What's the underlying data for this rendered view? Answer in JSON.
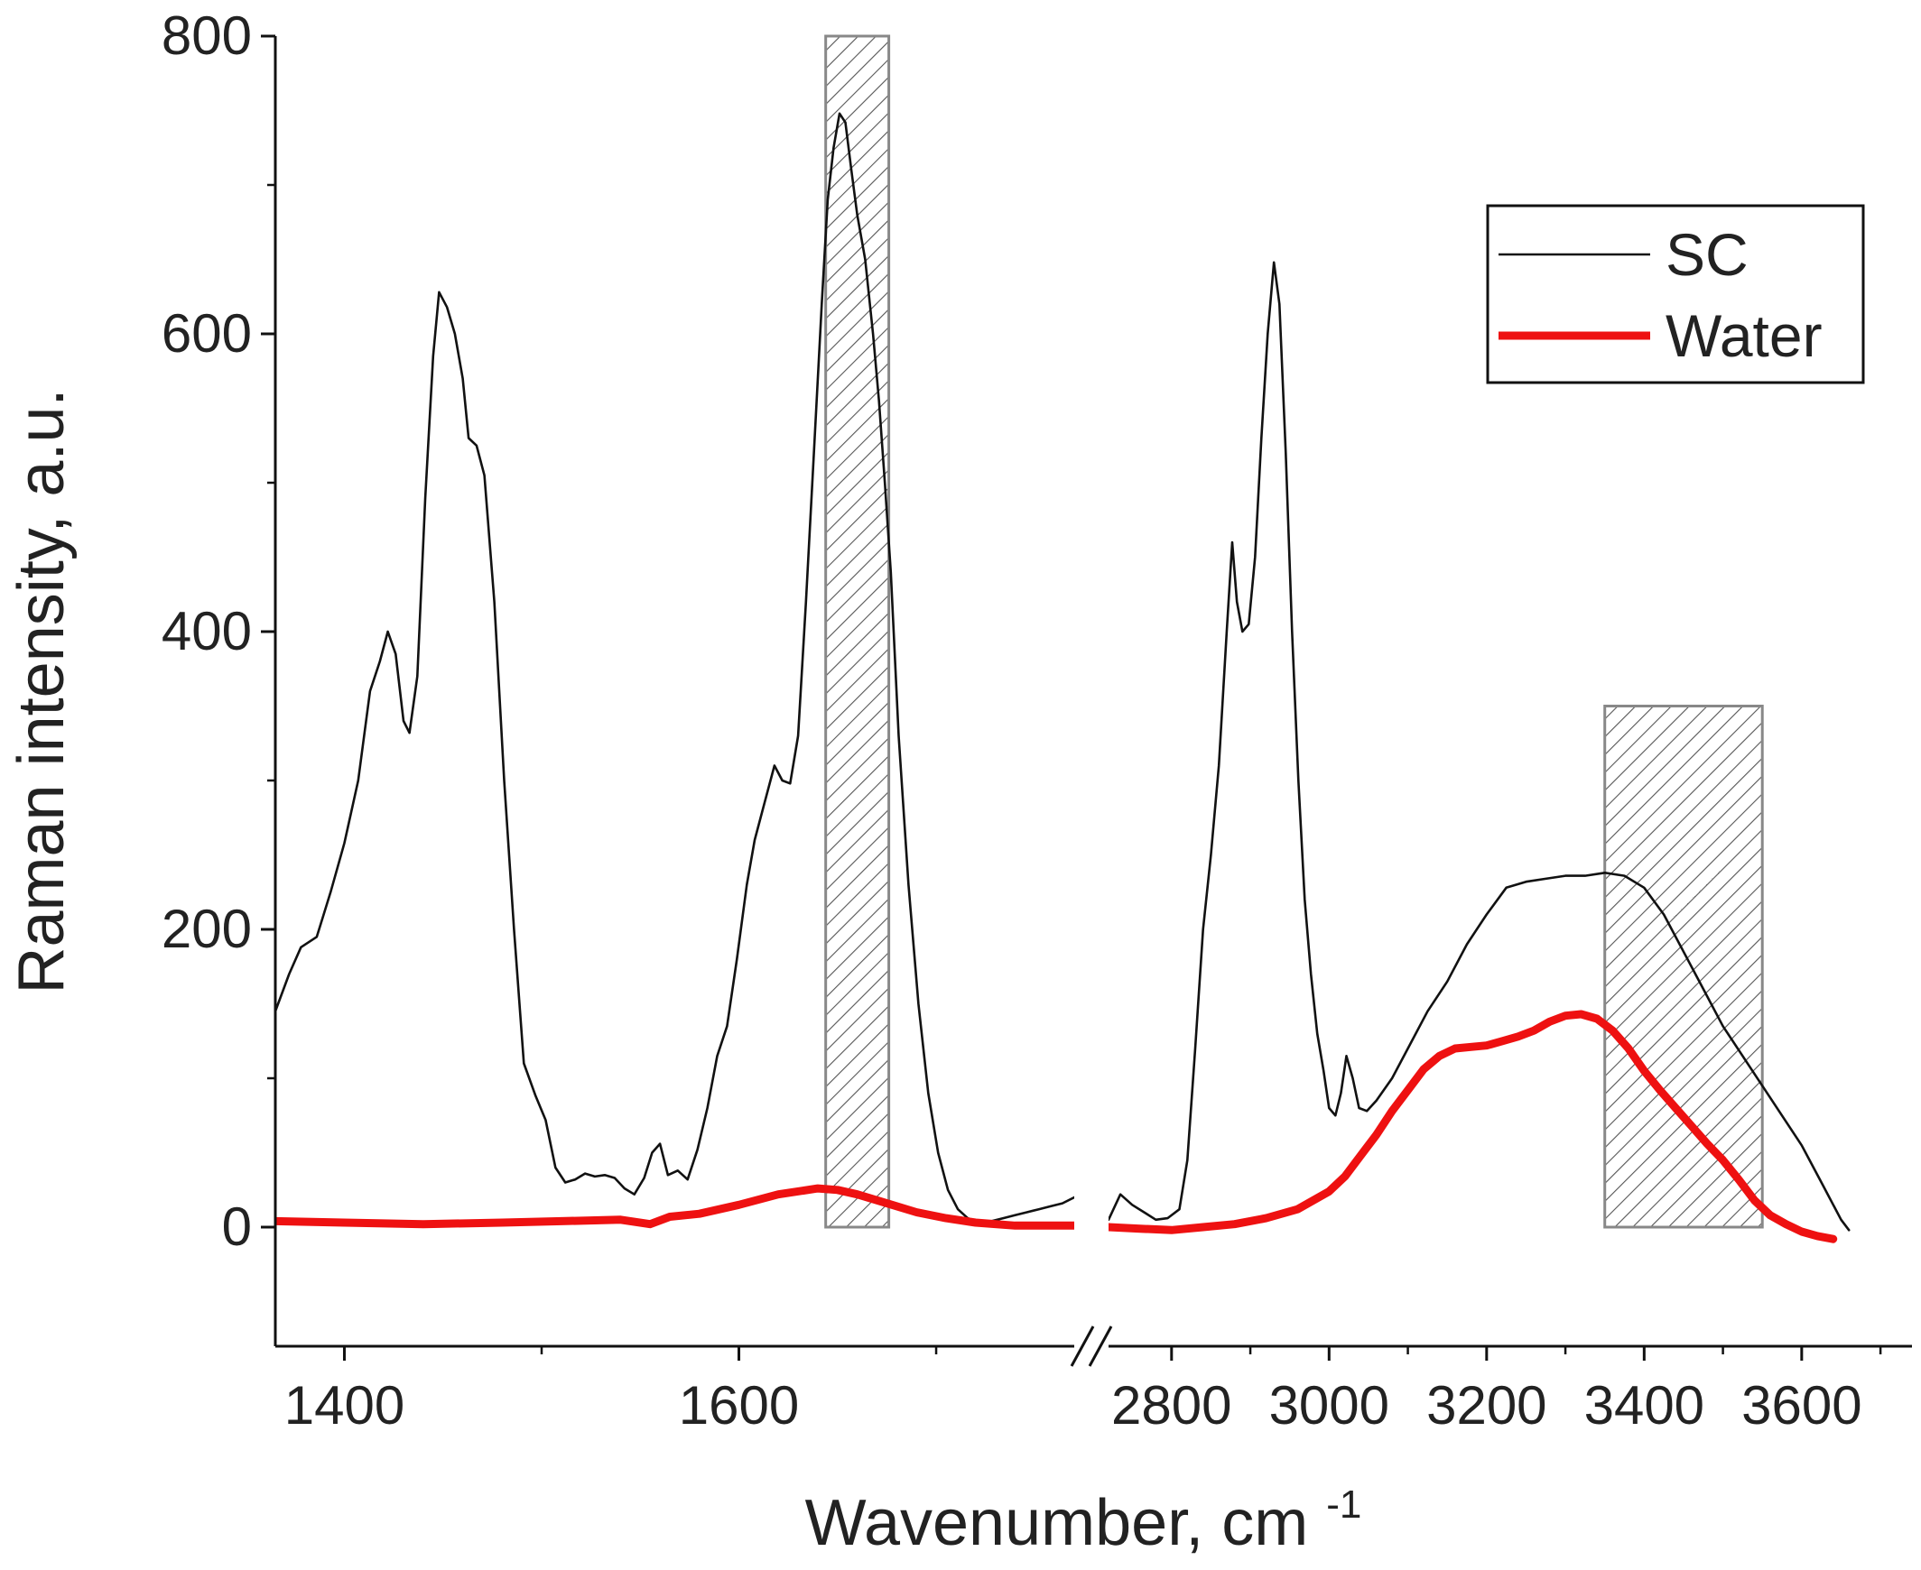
{
  "chart_data": {
    "type": "line",
    "title": "",
    "xlabel": "Wavenumber, cm",
    "xlabel_superscript": "-1",
    "ylabel": "Raman intensity, a.u.",
    "ylim": [
      -80,
      800
    ],
    "y_ticks": [
      0,
      200,
      400,
      600,
      800
    ],
    "x_axis_break": true,
    "x_segments": [
      {
        "xlim": [
          1365,
          1770
        ],
        "ticks": [
          1400,
          1600
        ]
      },
      {
        "xlim": [
          2720,
          3740
        ],
        "ticks": [
          2800,
          3000,
          3200,
          3400,
          3600
        ]
      }
    ],
    "shaded_regions": [
      {
        "x": [
          1644,
          1676
        ],
        "y": [
          0,
          800
        ],
        "pattern": "diagonal-hatch"
      },
      {
        "x": [
          3350,
          3550
        ],
        "y": [
          0,
          350
        ],
        "pattern": "diagonal-hatch"
      }
    ],
    "legend": {
      "position": "top-right",
      "entries": [
        "SC",
        "Water"
      ]
    },
    "series": [
      {
        "name": "SC",
        "color": "#111111",
        "segments": [
          [
            [
              1365,
              145
            ],
            [
              1372,
              170
            ],
            [
              1378,
              188
            ],
            [
              1386,
              195
            ],
            [
              1393,
              225
            ],
            [
              1400,
              258
            ],
            [
              1407,
              300
            ],
            [
              1413,
              360
            ],
            [
              1418,
              380
            ],
            [
              1422,
              400
            ],
            [
              1426,
              385
            ],
            [
              1430,
              340
            ],
            [
              1433,
              332
            ],
            [
              1437,
              370
            ],
            [
              1441,
              490
            ],
            [
              1445,
              585
            ],
            [
              1448,
              628
            ],
            [
              1452,
              618
            ],
            [
              1456,
              600
            ],
            [
              1460,
              570
            ],
            [
              1463,
              530
            ],
            [
              1467,
              525
            ],
            [
              1471,
              505
            ],
            [
              1476,
              420
            ],
            [
              1481,
              300
            ],
            [
              1486,
              200
            ],
            [
              1491,
              110
            ],
            [
              1497,
              88
            ],
            [
              1502,
              72
            ],
            [
              1507,
              40
            ],
            [
              1512,
              30
            ],
            [
              1517,
              32
            ],
            [
              1522,
              36
            ],
            [
              1527,
              34
            ],
            [
              1532,
              35
            ],
            [
              1537,
              33
            ],
            [
              1542,
              26
            ],
            [
              1547,
              22
            ],
            [
              1552,
              33
            ],
            [
              1556,
              50
            ],
            [
              1560,
              56
            ],
            [
              1564,
              35
            ],
            [
              1569,
              38
            ],
            [
              1574,
              32
            ],
            [
              1579,
              52
            ],
            [
              1584,
              80
            ],
            [
              1589,
              115
            ],
            [
              1594,
              135
            ],
            [
              1599,
              180
            ],
            [
              1604,
              230
            ],
            [
              1608,
              260
            ],
            [
              1613,
              285
            ],
            [
              1618,
              310
            ],
            [
              1622,
              300
            ],
            [
              1626,
              298
            ],
            [
              1630,
              330
            ],
            [
              1634,
              420
            ],
            [
              1638,
              520
            ],
            [
              1642,
              620
            ],
            [
              1645,
              690
            ],
            [
              1648,
              725
            ],
            [
              1651,
              748
            ],
            [
              1654,
              742
            ],
            [
              1657,
              710
            ],
            [
              1660,
              680
            ],
            [
              1664,
              650
            ],
            [
              1668,
              600
            ],
            [
              1671,
              555
            ],
            [
              1674,
              500
            ],
            [
              1677,
              440
            ],
            [
              1681,
              330
            ],
            [
              1686,
              230
            ],
            [
              1691,
              150
            ],
            [
              1696,
              90
            ],
            [
              1701,
              50
            ],
            [
              1706,
              25
            ],
            [
              1711,
              12
            ],
            [
              1716,
              6
            ],
            [
              1722,
              3
            ],
            [
              1728,
              4
            ],
            [
              1734,
              6
            ],
            [
              1740,
              8
            ],
            [
              1746,
              10
            ],
            [
              1752,
              12
            ],
            [
              1758,
              14
            ],
            [
              1764,
              16
            ],
            [
              1770,
              20
            ]
          ],
          [
            [
              2720,
              5
            ],
            [
              2735,
              22
            ],
            [
              2750,
              15
            ],
            [
              2765,
              10
            ],
            [
              2780,
              5
            ],
            [
              2795,
              6
            ],
            [
              2810,
              12
            ],
            [
              2820,
              45
            ],
            [
              2830,
              120
            ],
            [
              2840,
              200
            ],
            [
              2850,
              250
            ],
            [
              2860,
              310
            ],
            [
              2870,
              400
            ],
            [
              2877,
              460
            ],
            [
              2883,
              420
            ],
            [
              2890,
              400
            ],
            [
              2898,
              405
            ],
            [
              2906,
              450
            ],
            [
              2914,
              530
            ],
            [
              2922,
              600
            ],
            [
              2930,
              648
            ],
            [
              2937,
              620
            ],
            [
              2945,
              520
            ],
            [
              2953,
              400
            ],
            [
              2961,
              300
            ],
            [
              2969,
              220
            ],
            [
              2977,
              170
            ],
            [
              2985,
              130
            ],
            [
              2993,
              105
            ],
            [
              3000,
              80
            ],
            [
              3008,
              75
            ],
            [
              3015,
              90
            ],
            [
              3022,
              115
            ],
            [
              3030,
              100
            ],
            [
              3038,
              80
            ],
            [
              3048,
              78
            ],
            [
              3060,
              85
            ],
            [
              3080,
              100
            ],
            [
              3100,
              120
            ],
            [
              3125,
              145
            ],
            [
              3150,
              165
            ],
            [
              3175,
              190
            ],
            [
              3200,
              210
            ],
            [
              3225,
              228
            ],
            [
              3250,
              232
            ],
            [
              3275,
              234
            ],
            [
              3300,
              236
            ],
            [
              3325,
              236
            ],
            [
              3350,
              238
            ],
            [
              3375,
              236
            ],
            [
              3400,
              228
            ],
            [
              3425,
              210
            ],
            [
              3450,
              185
            ],
            [
              3475,
              160
            ],
            [
              3500,
              135
            ],
            [
              3525,
              115
            ],
            [
              3550,
              95
            ],
            [
              3575,
              75
            ],
            [
              3600,
              55
            ],
            [
              3625,
              30
            ],
            [
              3650,
              5
            ],
            [
              3660,
              -2
            ]
          ]
        ]
      },
      {
        "name": "Water",
        "color": "#ee1111",
        "segments": [
          [
            [
              1365,
              4
            ],
            [
              1400,
              3
            ],
            [
              1440,
              2
            ],
            [
              1480,
              3
            ],
            [
              1510,
              4
            ],
            [
              1540,
              5
            ],
            [
              1555,
              2
            ],
            [
              1565,
              7
            ],
            [
              1580,
              9
            ],
            [
              1600,
              15
            ],
            [
              1620,
              22
            ],
            [
              1640,
              26
            ],
            [
              1650,
              25
            ],
            [
              1660,
              22
            ],
            [
              1675,
              16
            ],
            [
              1690,
              10
            ],
            [
              1705,
              6
            ],
            [
              1720,
              3
            ],
            [
              1740,
              1
            ],
            [
              1770,
              1
            ]
          ],
          [
            [
              2720,
              0
            ],
            [
              2760,
              -1
            ],
            [
              2800,
              -2
            ],
            [
              2840,
              0
            ],
            [
              2880,
              2
            ],
            [
              2920,
              6
            ],
            [
              2960,
              12
            ],
            [
              3000,
              24
            ],
            [
              3020,
              34
            ],
            [
              3040,
              48
            ],
            [
              3060,
              62
            ],
            [
              3080,
              78
            ],
            [
              3100,
              92
            ],
            [
              3120,
              106
            ],
            [
              3140,
              115
            ],
            [
              3160,
              120
            ],
            [
              3180,
              121
            ],
            [
              3200,
              122
            ],
            [
              3220,
              125
            ],
            [
              3240,
              128
            ],
            [
              3260,
              132
            ],
            [
              3280,
              138
            ],
            [
              3300,
              142
            ],
            [
              3320,
              143
            ],
            [
              3340,
              140
            ],
            [
              3360,
              132
            ],
            [
              3380,
              120
            ],
            [
              3400,
              105
            ],
            [
              3420,
              92
            ],
            [
              3440,
              80
            ],
            [
              3460,
              68
            ],
            [
              3480,
              56
            ],
            [
              3500,
              45
            ],
            [
              3520,
              32
            ],
            [
              3540,
              18
            ],
            [
              3560,
              8
            ],
            [
              3580,
              2
            ],
            [
              3600,
              -3
            ],
            [
              3620,
              -6
            ],
            [
              3640,
              -8
            ]
          ]
        ]
      }
    ]
  }
}
